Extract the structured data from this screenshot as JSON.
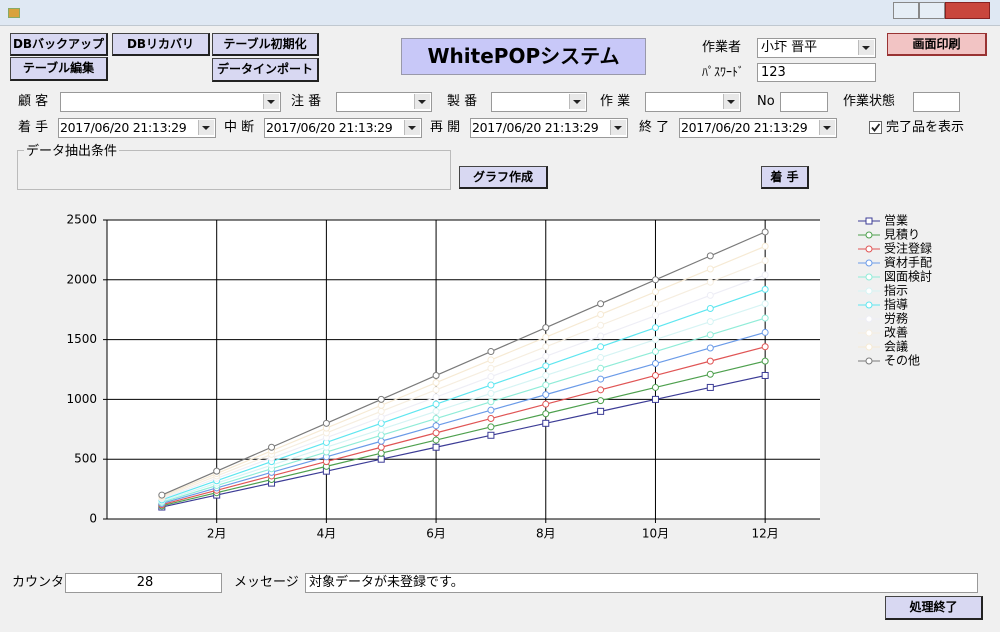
{
  "toolbar": [
    "DBバックアップ",
    "DBリカバリ",
    "テーブル初期化",
    "テーブル編集",
    "データインポート"
  ],
  "title": "WhitePOPシステム",
  "worker": {
    "label": "作業者",
    "value": "小圷 晋平"
  },
  "password": {
    "label": "ﾊﾟｽﾜｰﾄﾞ",
    "value": "123"
  },
  "print_button": "画面印刷",
  "filters": [
    "顧 客",
    "注 番",
    "製 番",
    "作 業",
    "No",
    "作業状態"
  ],
  "dates": [
    {
      "label": "着 手",
      "value": "2017/06/20 21:13:29"
    },
    {
      "label": "中 断",
      "value": "2017/06/20 21:13:29"
    },
    {
      "label": "再 開",
      "value": "2017/06/20 21:13:29"
    },
    {
      "label": "終 了",
      "value": "2017/06/20 21:13:29"
    }
  ],
  "show_completed": {
    "label": "完了品を表示",
    "checked": true
  },
  "extraction_group": "データ抽出条件",
  "graph_button": "グラフ作成",
  "start_button": "着 手",
  "chart_data": {
    "type": "line",
    "x": [
      1,
      2,
      3,
      4,
      5,
      6,
      7,
      8,
      9,
      10,
      11,
      12
    ],
    "xlim": [
      0,
      13
    ],
    "xticks": [
      {
        "value": 2,
        "label": "2月"
      },
      {
        "value": 4,
        "label": "4月"
      },
      {
        "value": 6,
        "label": "6月"
      },
      {
        "value": 8,
        "label": "8月"
      },
      {
        "value": 10,
        "label": "10月"
      },
      {
        "value": 12,
        "label": "12月"
      }
    ],
    "ylim": [
      0,
      2500
    ],
    "yticks": [
      0,
      500,
      1000,
      1500,
      2000,
      2500
    ],
    "grid": true,
    "legend": "right",
    "series": [
      {
        "name": "営業",
        "color": "#3c3c96",
        "marker": "square",
        "values": [
          100,
          200,
          300,
          400,
          500,
          600,
          700,
          800,
          900,
          1000,
          1100,
          1200
        ]
      },
      {
        "name": "見積り",
        "color": "#4ea04e",
        "marker": "circle",
        "values": [
          110,
          220,
          330,
          440,
          550,
          660,
          770,
          880,
          990,
          1100,
          1210,
          1320
        ]
      },
      {
        "name": "受注登録",
        "color": "#e05555",
        "marker": "circle",
        "values": [
          120,
          240,
          360,
          480,
          600,
          720,
          840,
          960,
          1080,
          1200,
          1320,
          1440
        ]
      },
      {
        "name": "資材手配",
        "color": "#6b9be8",
        "marker": "circle",
        "values": [
          130,
          260,
          390,
          520,
          650,
          780,
          910,
          1040,
          1170,
          1300,
          1430,
          1560
        ]
      },
      {
        "name": "図面検討",
        "color": "#90ecd8",
        "marker": "circle",
        "values": [
          140,
          280,
          420,
          560,
          700,
          840,
          980,
          1120,
          1260,
          1400,
          1540,
          1680
        ]
      },
      {
        "name": "指示",
        "color": "#d6f4f4",
        "marker": "circle",
        "values": [
          150,
          300,
          450,
          600,
          750,
          900,
          1050,
          1200,
          1350,
          1500,
          1650,
          1800
        ]
      },
      {
        "name": "指導",
        "color": "#5fe6f0",
        "marker": "circle",
        "values": [
          160,
          320,
          480,
          640,
          800,
          960,
          1120,
          1280,
          1440,
          1600,
          1760,
          1920
        ]
      },
      {
        "name": "労務",
        "color": "#eeeef6",
        "marker": "circle",
        "values": [
          170,
          340,
          510,
          680,
          850,
          1020,
          1190,
          1360,
          1530,
          1700,
          1870,
          2040
        ]
      },
      {
        "name": "改善",
        "color": "#f6eee0",
        "marker": "circle",
        "values": [
          180,
          360,
          540,
          720,
          900,
          1080,
          1260,
          1440,
          1620,
          1800,
          1980,
          2160
        ]
      },
      {
        "name": "会議",
        "color": "#f6ead4",
        "marker": "circle",
        "values": [
          190,
          380,
          570,
          760,
          950,
          1140,
          1330,
          1520,
          1710,
          1900,
          2090,
          2280
        ]
      },
      {
        "name": "その他",
        "color": "#7a7a7a",
        "marker": "circle",
        "values": [
          200,
          400,
          600,
          800,
          1000,
          1200,
          1400,
          1600,
          1800,
          2000,
          2200,
          2400
        ]
      }
    ]
  },
  "counter": {
    "label": "カウンタ",
    "value": "28"
  },
  "message": {
    "label": "メッセージ",
    "value": "対象データが未登録です。"
  },
  "exit_button": "処理終了"
}
